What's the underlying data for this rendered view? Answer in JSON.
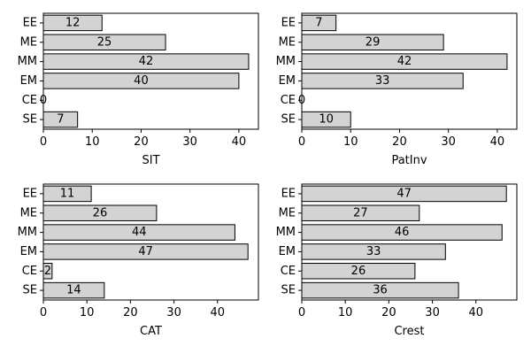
{
  "chart_data": [
    {
      "type": "bar",
      "orientation": "horizontal",
      "categories": [
        "EE",
        "ME",
        "MM",
        "EM",
        "CE",
        "SE"
      ],
      "values": [
        12,
        25,
        42,
        40,
        0,
        7
      ],
      "xlabel": "SIT",
      "xlim": [
        0,
        44
      ],
      "xticks": [
        0,
        10,
        20,
        30,
        40
      ],
      "data_labels": true,
      "grid": false,
      "bar_color": "#d3d3d3"
    },
    {
      "type": "bar",
      "orientation": "horizontal",
      "categories": [
        "EE",
        "ME",
        "MM",
        "EM",
        "CE",
        "SE"
      ],
      "values": [
        7,
        29,
        42,
        33,
        0,
        10
      ],
      "xlabel": "PatInv",
      "xlim": [
        0,
        44
      ],
      "xticks": [
        0,
        10,
        20,
        30,
        40
      ],
      "data_labels": true,
      "grid": false,
      "bar_color": "#d3d3d3"
    },
    {
      "type": "bar",
      "orientation": "horizontal",
      "categories": [
        "EE",
        "ME",
        "MM",
        "EM",
        "CE",
        "SE"
      ],
      "values": [
        11,
        26,
        44,
        47,
        2,
        14
      ],
      "xlabel": "CAT",
      "xlim": [
        0,
        49.4
      ],
      "xticks": [
        0,
        10,
        20,
        30,
        40
      ],
      "data_labels": true,
      "grid": false,
      "bar_color": "#d3d3d3"
    },
    {
      "type": "bar",
      "orientation": "horizontal",
      "categories": [
        "EE",
        "ME",
        "MM",
        "EM",
        "CE",
        "SE"
      ],
      "values": [
        47,
        27,
        46,
        33,
        26,
        36
      ],
      "xlabel": "Crest",
      "xlim": [
        0,
        49.4
      ],
      "xticks": [
        0,
        10,
        20,
        30,
        40
      ],
      "data_labels": true,
      "grid": false,
      "bar_color": "#d3d3d3"
    }
  ]
}
